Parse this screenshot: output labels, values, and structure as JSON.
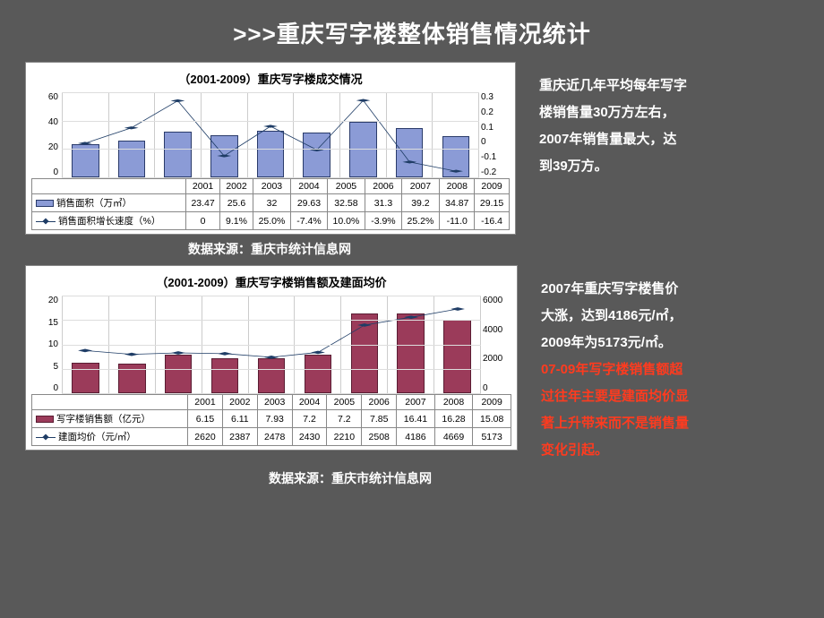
{
  "title": ">>>重庆写字楼整体销售情况统计",
  "source_label": "数据来源：重庆市统计信息网",
  "chart1": {
    "title": "（2001-2009）重庆写字楼成交情况",
    "type": "bar+line",
    "years": [
      "2001",
      "2002",
      "2003",
      "2004",
      "2005",
      "2006",
      "2007",
      "2008",
      "2009"
    ],
    "bar_series_label": "销售面积（万㎡）",
    "line_series_label": "销售面积增长速度（%）",
    "bar_values": [
      23.47,
      25.6,
      32,
      29.63,
      32.58,
      31.3,
      39.2,
      34.87,
      29.15
    ],
    "line_values_display": [
      "0",
      "9.1%",
      "25.0%",
      "-7.4%",
      "10.0%",
      "-3.9%",
      "25.2%",
      "-11.0",
      "-16.4"
    ],
    "line_values": [
      0,
      0.091,
      0.25,
      -0.074,
      0.1,
      -0.039,
      0.252,
      -0.11,
      -0.164
    ],
    "left_axis": {
      "min": 0,
      "max": 60,
      "ticks": [
        0,
        20,
        40,
        60
      ]
    },
    "right_axis": {
      "min": -0.2,
      "max": 0.3,
      "ticks": [
        0.3,
        0.2,
        0.1,
        0,
        -0.1,
        -0.2
      ]
    },
    "bar_color": "#8b9bd6",
    "bar_border": "#2a3b6a",
    "line_color": "#1f3d66",
    "marker_color": "#1f3d66",
    "background": "#ffffff",
    "grid_color": "#dddddd",
    "label_fontsize": 10
  },
  "side1": {
    "text_lines": [
      "重庆近几年平均每年写字",
      "楼销售量30万方左右，",
      "2007年销售量最大，达",
      "到39万方。"
    ]
  },
  "chart2": {
    "title": "（2001-2009）重庆写字楼销售额及建面均价",
    "type": "bar+line",
    "years": [
      "2001",
      "2002",
      "2003",
      "2004",
      "2005",
      "2006",
      "2007",
      "2008",
      "2009"
    ],
    "bar_series_label": "写字楼销售额（亿元）",
    "line_series_label": "建面均价（元/㎡）",
    "bar_values": [
      6.15,
      6.11,
      7.93,
      7.2,
      7.2,
      7.85,
      16.41,
      16.28,
      15.08
    ],
    "line_values": [
      2620,
      2387,
      2478,
      2430,
      2210,
      2508,
      4186,
      4669,
      5173
    ],
    "left_axis": {
      "min": 0,
      "max": 20,
      "ticks": [
        0,
        5,
        10,
        15,
        20
      ]
    },
    "right_axis": {
      "min": 0,
      "max": 6000,
      "ticks": [
        6000,
        4000,
        2000,
        0
      ]
    },
    "bar_color": "#9b3b5a",
    "bar_border": "#5a1d33",
    "line_color": "#1f3d66",
    "marker_color": "#1f3d66",
    "background": "#ffffff",
    "grid_color": "#dddddd",
    "label_fontsize": 10
  },
  "side2": {
    "white_lines": [
      "2007年重庆写字楼售价",
      "大涨，达到4186元/㎡，",
      "2009年为5173元/㎡。"
    ],
    "red_lines": [
      "07-09年写字楼销售额超",
      "过往年主要是建面均价显",
      "著上升带来而不是销售量",
      "变化引起。"
    ]
  }
}
